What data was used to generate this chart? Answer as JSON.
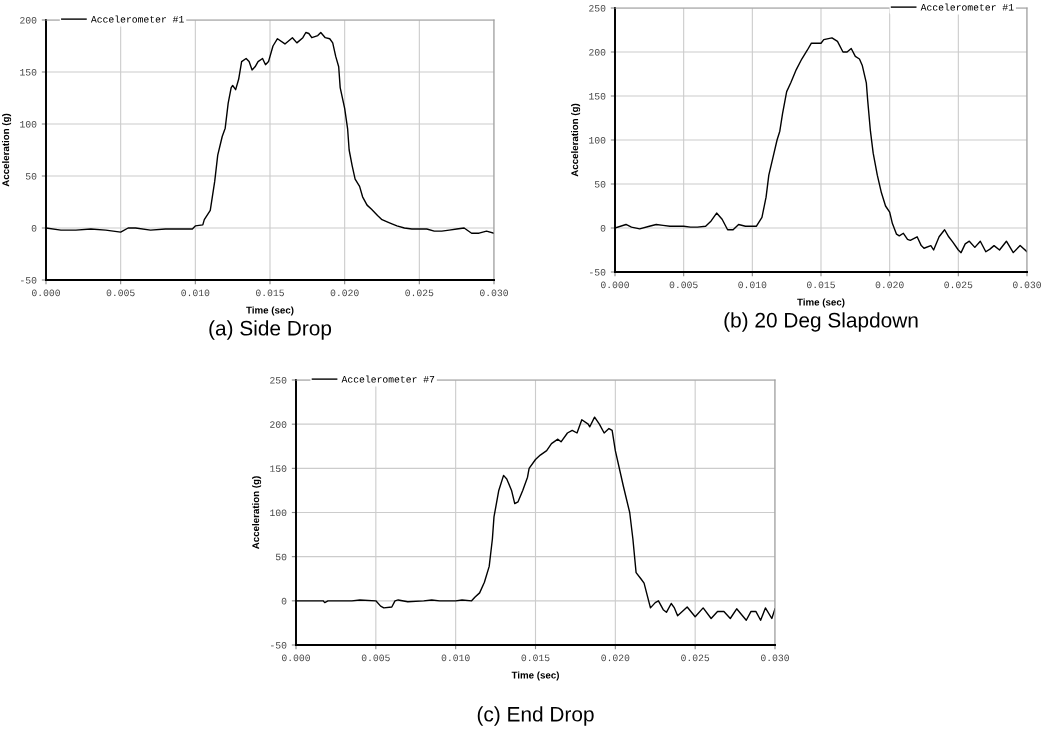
{
  "chart_data": [
    {
      "type": "line",
      "title": "(a) Side Drop",
      "xlabel": "Time (sec)",
      "ylabel": "Acceleration (g)",
      "legend": "top left",
      "grid": true,
      "xlim": [
        0,
        0.03
      ],
      "ylim": [
        -50,
        200
      ],
      "xticks": [
        {
          "value": 0,
          "label": "0.000"
        },
        {
          "value": 0.005,
          "label": "0.005"
        },
        {
          "value": 0.01,
          "label": "0.010"
        },
        {
          "value": 0.015,
          "label": "0.015"
        },
        {
          "value": 0.02,
          "label": "0.020"
        },
        {
          "value": 0.025,
          "label": "0.025"
        },
        {
          "value": 0.03,
          "label": "0.030"
        }
      ],
      "yticks": [
        -50,
        0,
        50,
        100,
        150,
        200
      ],
      "series": [
        {
          "name": "Accelerometer #1",
          "color": "#000000",
          "x": [
            0,
            0.001,
            0.002,
            0.003,
            0.004,
            0.005,
            0.0055,
            0.006,
            0.007,
            0.008,
            0.009,
            0.0098,
            0.01,
            0.0105,
            0.0106,
            0.011,
            0.0113,
            0.0115,
            0.0118,
            0.012,
            0.0122,
            0.0124,
            0.0125,
            0.0127,
            0.0129,
            0.0131,
            0.0134,
            0.0136,
            0.0138,
            0.014,
            0.0142,
            0.0145,
            0.0147,
            0.0149,
            0.0152,
            0.0155,
            0.016,
            0.0165,
            0.0168,
            0.0172,
            0.0174,
            0.0176,
            0.0178,
            0.0182,
            0.0184,
            0.0187,
            0.019,
            0.0192,
            0.0194,
            0.0196,
            0.0197,
            0.02,
            0.0202,
            0.0203,
            0.0205,
            0.0207,
            0.021,
            0.0212,
            0.0215,
            0.0218,
            0.0222,
            0.0225,
            0.023,
            0.0235,
            0.024,
            0.0245,
            0.025,
            0.0255,
            0.026,
            0.0265,
            0.027,
            0.0275,
            0.028,
            0.0285,
            0.029,
            0.0295,
            0.03
          ],
          "values": [
            0,
            -2,
            -2,
            -1,
            -2,
            -4,
            0,
            0,
            -2,
            -1,
            -1,
            -1,
            2,
            3,
            8,
            17,
            45,
            70,
            88,
            96,
            120,
            135,
            137,
            133,
            143,
            160,
            163,
            160,
            152,
            155,
            160,
            163,
            157,
            160,
            175,
            182,
            177,
            183,
            178,
            183,
            188,
            187,
            183,
            185,
            188,
            183,
            182,
            178,
            165,
            155,
            135,
            115,
            95,
            75,
            60,
            47,
            40,
            30,
            22,
            18,
            12,
            8,
            5,
            2,
            0,
            -1,
            -1,
            -1,
            -3,
            -3,
            -2,
            -1,
            0,
            -5,
            -5,
            -3,
            -5
          ]
        }
      ]
    },
    {
      "type": "line",
      "title": "(b) 20 Deg Slapdown",
      "xlabel": "Time (sec)",
      "ylabel": "Acceleration (g)",
      "legend": "top right",
      "grid": true,
      "xlim": [
        0,
        0.03
      ],
      "ylim": [
        -50,
        250
      ],
      "xticks": [
        {
          "value": 0,
          "label": "0.000"
        },
        {
          "value": 0.005,
          "label": "0.005"
        },
        {
          "value": 0.01,
          "label": "0.010"
        },
        {
          "value": 0.015,
          "label": "0.015"
        },
        {
          "value": 0.02,
          "label": "0.020"
        },
        {
          "value": 0.025,
          "label": "0.025"
        },
        {
          "value": 0.03,
          "label": "0.030"
        }
      ],
      "yticks": [
        -50,
        0,
        50,
        100,
        150,
        200,
        250
      ],
      "series": [
        {
          "name": "Accelerometer #1",
          "color": "#000000",
          "x": [
            0,
            0.0008,
            0.0012,
            0.0018,
            0.0025,
            0.003,
            0.0035,
            0.004,
            0.0045,
            0.005,
            0.0055,
            0.006,
            0.0066,
            0.007,
            0.0074,
            0.0078,
            0.0082,
            0.0086,
            0.009,
            0.0095,
            0.0103,
            0.0107,
            0.011,
            0.0112,
            0.0115,
            0.0118,
            0.012,
            0.0122,
            0.0125,
            0.0128,
            0.0132,
            0.0136,
            0.014,
            0.0143,
            0.015,
            0.0152,
            0.0158,
            0.0162,
            0.0166,
            0.0169,
            0.0172,
            0.0175,
            0.0178,
            0.018,
            0.0183,
            0.0184,
            0.0186,
            0.0188,
            0.0191,
            0.0194,
            0.0197,
            0.02,
            0.0202,
            0.0205,
            0.0207,
            0.021,
            0.0213,
            0.0215,
            0.022,
            0.0223,
            0.0225,
            0.023,
            0.0232,
            0.0236,
            0.024,
            0.0243,
            0.0246,
            0.025,
            0.0252,
            0.0255,
            0.0258,
            0.0262,
            0.0266,
            0.027,
            0.0273,
            0.0276,
            0.028,
            0.0285,
            0.029,
            0.0295,
            0.03
          ],
          "values": [
            0,
            4,
            1,
            -1,
            2,
            4,
            3,
            2,
            2,
            2,
            1,
            1,
            2,
            8,
            17,
            10,
            -2,
            -2,
            4,
            2,
            2,
            12,
            35,
            60,
            80,
            100,
            110,
            130,
            155,
            165,
            180,
            192,
            202,
            210,
            210,
            214,
            216,
            212,
            200,
            200,
            204,
            195,
            192,
            185,
            165,
            145,
            110,
            85,
            60,
            40,
            25,
            18,
            5,
            -7,
            -9,
            -6,
            -13,
            -14,
            -10,
            -20,
            -23,
            -20,
            -25,
            -10,
            -2,
            -10,
            -16,
            -25,
            -28,
            -18,
            -15,
            -22,
            -15,
            -27,
            -24,
            -20,
            -25,
            -15,
            -28,
            -20,
            -27
          ]
        }
      ]
    },
    {
      "type": "line",
      "title": "(c) End Drop",
      "xlabel": "Time (sec)",
      "ylabel": "Acceleration (g)",
      "legend": "top left",
      "grid": true,
      "xlim": [
        0,
        0.03
      ],
      "ylim": [
        -50,
        250
      ],
      "xticks": [
        {
          "value": 0,
          "label": "0.000"
        },
        {
          "value": 0.005,
          "label": "0.005"
        },
        {
          "value": 0.01,
          "label": "0.010"
        },
        {
          "value": 0.015,
          "label": "0.015"
        },
        {
          "value": 0.02,
          "label": "0.020"
        },
        {
          "value": 0.025,
          "label": "0.025"
        },
        {
          "value": 0.03,
          "label": "0.030"
        }
      ],
      "yticks": [
        -50,
        0,
        50,
        100,
        150,
        200,
        250
      ],
      "series": [
        {
          "name": "Accelerometer #7",
          "color": "#000000",
          "x": [
            0,
            0.0017,
            0.0018,
            0.002,
            0.0035,
            0.004,
            0.005,
            0.0053,
            0.0055,
            0.006,
            0.0062,
            0.0064,
            0.007,
            0.008,
            0.0085,
            0.009,
            0.01,
            0.0104,
            0.011,
            0.0112,
            0.0115,
            0.0118,
            0.0121,
            0.0123,
            0.0124,
            0.0127,
            0.013,
            0.0132,
            0.0135,
            0.0137,
            0.0139,
            0.0142,
            0.0145,
            0.0146,
            0.015,
            0.0153,
            0.0157,
            0.016,
            0.0164,
            0.0166,
            0.017,
            0.0173,
            0.0176,
            0.0179,
            0.0183,
            0.0184,
            0.0187,
            0.019,
            0.0193,
            0.0196,
            0.0198,
            0.02,
            0.0205,
            0.0209,
            0.0211,
            0.0213,
            0.0216,
            0.0218,
            0.0222,
            0.0225,
            0.0227,
            0.023,
            0.0232,
            0.0235,
            0.0237,
            0.0239,
            0.0245,
            0.025,
            0.0255,
            0.026,
            0.0264,
            0.0268,
            0.0272,
            0.0276,
            0.0282,
            0.0285,
            0.0288,
            0.0291,
            0.0294,
            0.0298,
            0.03
          ],
          "values": [
            0,
            0,
            -2,
            0,
            0,
            1,
            0,
            -6,
            -8,
            -7,
            0,
            1,
            -1,
            0,
            1,
            0,
            0,
            1,
            0,
            4,
            9,
            21,
            39,
            70,
            95,
            125,
            142,
            138,
            125,
            110,
            112,
            125,
            140,
            150,
            160,
            165,
            170,
            178,
            183,
            180,
            190,
            193,
            190,
            205,
            200,
            197,
            208,
            200,
            190,
            195,
            193,
            170,
            130,
            100,
            70,
            32,
            25,
            20,
            -8,
            -2,
            0,
            -10,
            -13,
            -3,
            -8,
            -17,
            -7,
            -18,
            -8,
            -20,
            -12,
            -12,
            -20,
            -9,
            -22,
            -12,
            -12,
            -22,
            -8,
            -20,
            -9
          ]
        }
      ]
    }
  ]
}
